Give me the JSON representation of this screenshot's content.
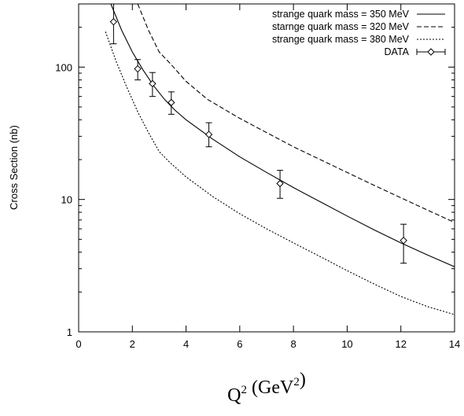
{
  "chart_data": {
    "type": "line",
    "title": "",
    "xlabel": {
      "base": "Q",
      "sup": "2",
      "unit_open": " (GeV",
      "unit_sup": "2",
      "unit_close": ")"
    },
    "ylabel": "Cross Section (nb)",
    "xlim": [
      0,
      14
    ],
    "ylim": [
      1,
      300
    ],
    "yscale": "log",
    "x_ticks": [
      0,
      2,
      4,
      6,
      8,
      10,
      12,
      14
    ],
    "x_tick_labels": [
      "0",
      "2",
      "4",
      "6",
      "8",
      "10",
      "12",
      "14"
    ],
    "y_ticks": [
      1,
      10,
      100
    ],
    "y_tick_labels": [
      "1",
      "10",
      "100"
    ],
    "legend_position": "top-right",
    "series": [
      {
        "name": "strange quark mass = 350 MeV",
        "style": "solid",
        "x": [
          1.2,
          1.6,
          2.0,
          2.4,
          2.8,
          3.2,
          3.6,
          4.0,
          5.0,
          6.0,
          7.0,
          8.0,
          9.0,
          10.0,
          11.0,
          12.0,
          13.0,
          14.0
        ],
        "y": [
          300,
          190,
          130,
          95,
          72,
          57,
          47,
          40,
          28.5,
          21,
          16,
          12.3,
          9.6,
          7.5,
          5.9,
          4.7,
          3.8,
          3.1
        ]
      },
      {
        "name": "starnge quark mass = 320 MeV",
        "style": "dashed",
        "x": [
          2.2,
          2.6,
          3.0,
          3.4,
          4.0,
          4.8,
          6.0,
          7.0,
          8.0,
          9.0,
          10.0,
          11.0,
          12.0,
          13.0,
          14.0
        ],
        "y": [
          300,
          190,
          130,
          107,
          78,
          57,
          41,
          32,
          25,
          20,
          16,
          12.8,
          10.3,
          8.3,
          6.7
        ]
      },
      {
        "name": "strange quark mass = 380 MeV",
        "style": "dotted",
        "x": [
          1.0,
          1.4,
          1.8,
          2.2,
          2.6,
          3.0,
          3.4,
          4.0,
          5.0,
          6.0,
          7.0,
          8.0,
          9.0,
          10.0,
          11.0,
          12.0,
          13.0,
          14.0
        ],
        "y": [
          185,
          110,
          70,
          46,
          32,
          23,
          19,
          14.8,
          10.5,
          7.8,
          6.0,
          4.7,
          3.7,
          2.9,
          2.3,
          1.85,
          1.55,
          1.35
        ]
      }
    ],
    "data_series": {
      "name": "DATA",
      "x": [
        1.3,
        2.2,
        2.75,
        3.45,
        4.85,
        7.5,
        12.1
      ],
      "y": [
        220,
        97,
        75,
        54,
        31,
        13.2,
        4.9
      ],
      "y_err_low": [
        70,
        17,
        15,
        10,
        6,
        3,
        1.6
      ],
      "y_err_high": [
        80,
        17,
        16,
        11,
        7,
        3.4,
        1.6
      ]
    }
  }
}
